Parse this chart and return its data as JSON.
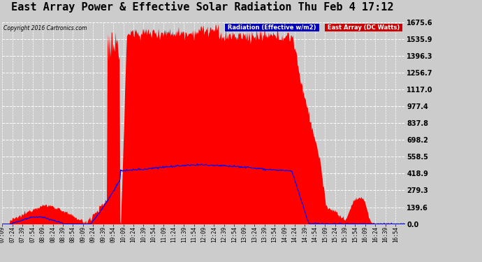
{
  "title": "East Array Power & Effective Solar Radiation Thu Feb 4 17:12",
  "copyright": "Copyright 2016 Cartronics.com",
  "legend_labels": [
    "Radiation (Effective w/m2)",
    "East Array (DC Watts)"
  ],
  "yticks": [
    0.0,
    139.6,
    279.3,
    418.9,
    558.5,
    698.2,
    837.8,
    977.4,
    1117.0,
    1256.7,
    1396.3,
    1535.9,
    1675.6
  ],
  "ymax": 1675.6,
  "ymin": 0.0,
  "background_color": "#cccccc",
  "plot_bg_color": "#cccccc",
  "grid_color": "#ffffff",
  "title_fontsize": 11,
  "red_fill_color": "#ff0000",
  "blue_line_color": "#0000ff"
}
